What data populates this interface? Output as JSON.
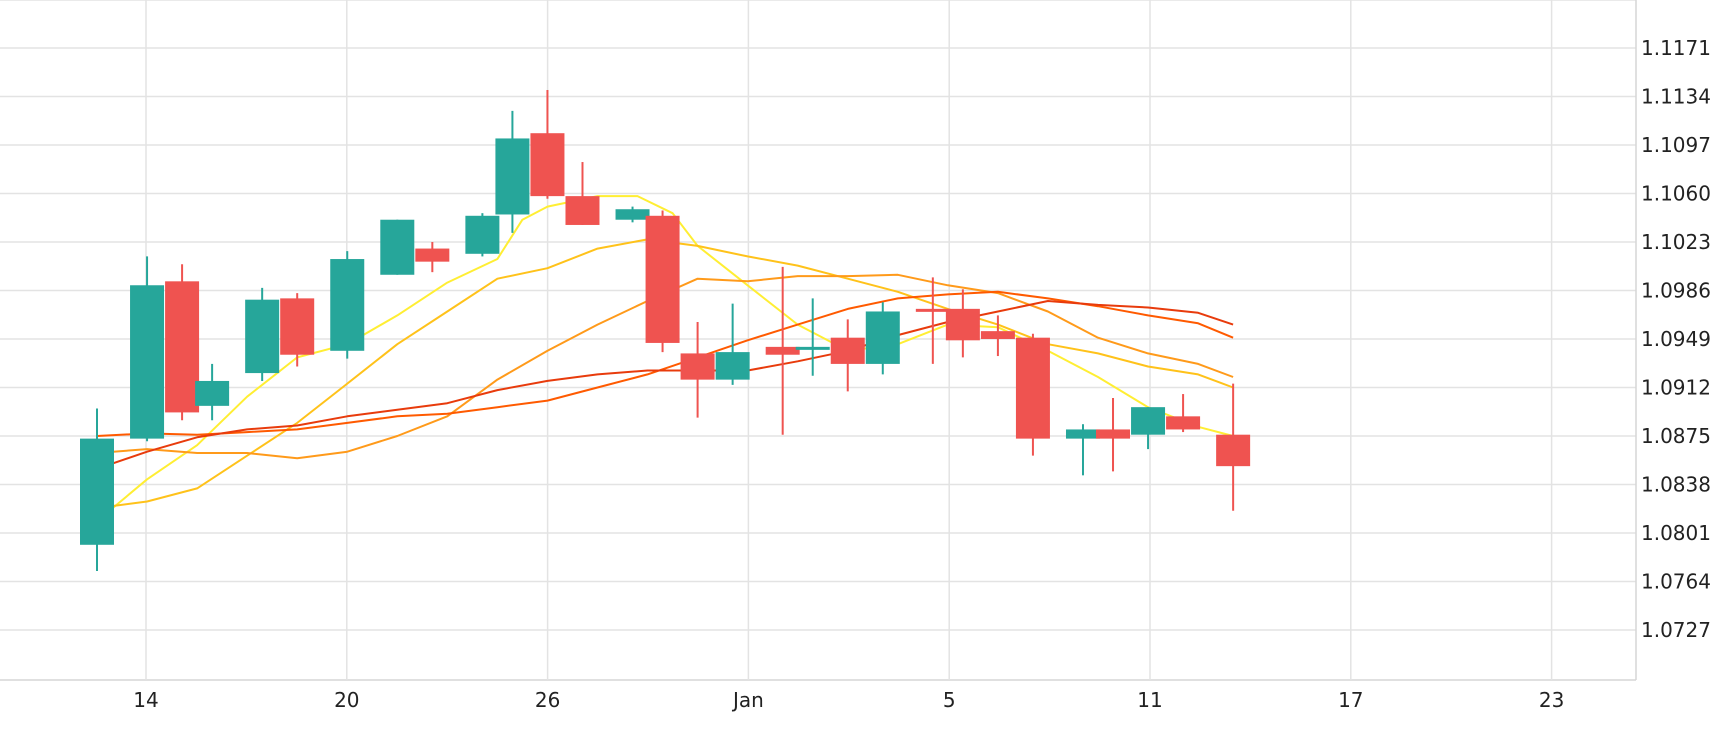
{
  "chart_data": {
    "type": "candlestick",
    "title": "",
    "xlabel": "",
    "ylabel": "",
    "ylim": [
      1.069,
      1.121
    ],
    "x_axis": {
      "labels": [
        "14",
        "20",
        "26",
        "Jan",
        "5",
        "11",
        "17",
        "23"
      ],
      "label_at_day_index": [
        1,
        5,
        9,
        13,
        17,
        21,
        25,
        29
      ]
    },
    "y_axis": {
      "ticks": [
        "1.1171",
        "1.1134",
        "1.1097",
        "1.1060",
        "1.1023",
        "1.0986",
        "1.0949",
        "1.0912",
        "1.0875",
        "1.0838",
        "1.0801",
        "1.0764",
        "1.0727"
      ],
      "side": "right"
    },
    "grid": true,
    "colors": {
      "up": "#26a69a",
      "down": "#ef5350"
    },
    "candles": [
      {
        "day": 0.0,
        "o": 1.0792,
        "h": 1.0896,
        "l": 1.0772,
        "c": 1.0873
      },
      {
        "day": 1.0,
        "o": 1.0873,
        "h": 1.1012,
        "l": 1.0871,
        "c": 1.099
      },
      {
        "day": 1.7,
        "o": 1.0993,
        "h": 1.1006,
        "l": 1.0887,
        "c": 1.0893
      },
      {
        "day": 2.3,
        "o": 1.0898,
        "h": 1.093,
        "l": 1.0887,
        "c": 1.0917
      },
      {
        "day": 3.3,
        "o": 1.0923,
        "h": 1.0988,
        "l": 1.0917,
        "c": 1.0979
      },
      {
        "day": 4.0,
        "o": 1.098,
        "h": 1.0984,
        "l": 1.0928,
        "c": 1.0937
      },
      {
        "day": 5.0,
        "o": 1.094,
        "h": 1.1016,
        "l": 1.0934,
        "c": 1.101
      },
      {
        "day": 6.0,
        "o": 1.0998,
        "h": 1.104,
        "l": 1.0998,
        "c": 1.104
      },
      {
        "day": 6.7,
        "o": 1.1018,
        "h": 1.1023,
        "l": 1.1,
        "c": 1.1008
      },
      {
        "day": 7.7,
        "o": 1.1014,
        "h": 1.1045,
        "l": 1.1012,
        "c": 1.1043
      },
      {
        "day": 8.3,
        "o": 1.1044,
        "h": 1.1123,
        "l": 1.103,
        "c": 1.1102
      },
      {
        "day": 9.0,
        "o": 1.1106,
        "h": 1.1139,
        "l": 1.1056,
        "c": 1.1058
      },
      {
        "day": 9.7,
        "o": 1.1058,
        "h": 1.1084,
        "l": 1.1036,
        "c": 1.1036
      },
      {
        "day": 10.7,
        "o": 1.104,
        "h": 1.105,
        "l": 1.1038,
        "c": 1.1048
      },
      {
        "day": 11.3,
        "o": 1.1043,
        "h": 1.1047,
        "l": 1.0939,
        "c": 1.0946
      },
      {
        "day": 12.0,
        "o": 1.0938,
        "h": 1.0962,
        "l": 1.0889,
        "c": 1.0918
      },
      {
        "day": 12.7,
        "o": 1.0918,
        "h": 1.0976,
        "l": 1.0914,
        "c": 1.0939
      },
      {
        "day": 13.7,
        "o": 1.0943,
        "h": 1.1004,
        "l": 1.0876,
        "c": 1.0937
      },
      {
        "day": 14.3,
        "o": 1.0941,
        "h": 1.098,
        "l": 1.0921,
        "c": 1.0943
      },
      {
        "day": 15.0,
        "o": 1.095,
        "h": 1.0964,
        "l": 1.0909,
        "c": 1.093
      },
      {
        "day": 15.7,
        "o": 1.093,
        "h": 1.0977,
        "l": 1.0922,
        "c": 1.097
      },
      {
        "day": 16.7,
        "o": 1.0972,
        "h": 1.0996,
        "l": 1.093,
        "c": 1.097
      },
      {
        "day": 17.3,
        "o": 1.0972,
        "h": 1.0987,
        "l": 1.0935,
        "c": 1.0948
      },
      {
        "day": 18.0,
        "o": 1.0955,
        "h": 1.0967,
        "l": 1.0936,
        "c": 1.0949
      },
      {
        "day": 18.7,
        "o": 1.095,
        "h": 1.0953,
        "l": 1.086,
        "c": 1.0873
      },
      {
        "day": 19.7,
        "o": 1.0873,
        "h": 1.0884,
        "l": 1.0845,
        "c": 1.088
      },
      {
        "day": 20.3,
        "o": 1.088,
        "h": 1.0904,
        "l": 1.0848,
        "c": 1.0873
      },
      {
        "day": 21.0,
        "o": 1.0876,
        "h": 1.0897,
        "l": 1.0865,
        "c": 1.0897
      },
      {
        "day": 21.7,
        "o": 1.089,
        "h": 1.0907,
        "l": 1.0878,
        "c": 1.088
      },
      {
        "day": 22.7,
        "o": 1.0876,
        "h": 1.0915,
        "l": 1.0818,
        "c": 1.0852
      }
    ],
    "series": [
      {
        "color": "#ffee33",
        "points": [
          [
            0.0,
            1.081
          ],
          [
            1.0,
            1.0842
          ],
          [
            2.0,
            1.0868
          ],
          [
            3.0,
            1.0905
          ],
          [
            4.0,
            1.0935
          ],
          [
            5.0,
            1.0945
          ],
          [
            6.0,
            1.0967
          ],
          [
            7.0,
            1.0992
          ],
          [
            8.0,
            1.101
          ],
          [
            8.5,
            1.104
          ],
          [
            9.0,
            1.105
          ],
          [
            10.0,
            1.1058
          ],
          [
            10.8,
            1.1058
          ],
          [
            11.5,
            1.1045
          ],
          [
            12.0,
            1.102
          ],
          [
            13.0,
            1.099
          ],
          [
            14.0,
            1.096
          ],
          [
            15.0,
            1.094
          ],
          [
            16.0,
            1.0945
          ],
          [
            17.0,
            1.096
          ],
          [
            18.0,
            1.0958
          ],
          [
            19.0,
            1.094
          ],
          [
            20.0,
            1.092
          ],
          [
            21.0,
            1.0897
          ],
          [
            22.0,
            1.0882
          ],
          [
            22.7,
            1.0875
          ]
        ]
      },
      {
        "color": "#ffc21a",
        "points": [
          [
            0.0,
            1.082
          ],
          [
            1.0,
            1.0825
          ],
          [
            2.0,
            1.0835
          ],
          [
            3.0,
            1.086
          ],
          [
            4.0,
            1.0885
          ],
          [
            5.0,
            1.0915
          ],
          [
            6.0,
            1.0945
          ],
          [
            7.0,
            1.097
          ],
          [
            8.0,
            1.0995
          ],
          [
            9.0,
            1.1003
          ],
          [
            10.0,
            1.1018
          ],
          [
            11.0,
            1.1025
          ],
          [
            12.0,
            1.102
          ],
          [
            13.0,
            1.1012
          ],
          [
            14.0,
            1.1005
          ],
          [
            15.0,
            1.0995
          ],
          [
            16.0,
            1.0985
          ],
          [
            17.0,
            1.0972
          ],
          [
            18.0,
            1.096
          ],
          [
            19.0,
            1.0945
          ],
          [
            20.0,
            1.0938
          ],
          [
            21.0,
            1.0928
          ],
          [
            22.0,
            1.0922
          ],
          [
            22.7,
            1.0912
          ]
        ]
      },
      {
        "color": "#ff9a1a",
        "points": [
          [
            0.0,
            1.0862
          ],
          [
            1.0,
            1.0865
          ],
          [
            2.0,
            1.0862
          ],
          [
            3.0,
            1.0862
          ],
          [
            4.0,
            1.0858
          ],
          [
            5.0,
            1.0863
          ],
          [
            6.0,
            1.0875
          ],
          [
            7.0,
            1.089
          ],
          [
            8.0,
            1.0918
          ],
          [
            9.0,
            1.094
          ],
          [
            10.0,
            1.096
          ],
          [
            11.0,
            1.0978
          ],
          [
            12.0,
            1.0995
          ],
          [
            13.0,
            1.0993
          ],
          [
            14.0,
            1.0997
          ],
          [
            15.0,
            1.0997
          ],
          [
            16.0,
            1.0998
          ],
          [
            17.0,
            1.099
          ],
          [
            18.0,
            1.0984
          ],
          [
            19.0,
            1.097
          ],
          [
            20.0,
            1.095
          ],
          [
            21.0,
            1.0938
          ],
          [
            22.0,
            1.093
          ],
          [
            22.7,
            1.092
          ]
        ]
      },
      {
        "color": "#ff5a00",
        "points": [
          [
            0.0,
            1.0875
          ],
          [
            1.0,
            1.0877
          ],
          [
            2.0,
            1.0876
          ],
          [
            3.0,
            1.0878
          ],
          [
            4.0,
            1.088
          ],
          [
            5.0,
            1.0885
          ],
          [
            6.0,
            1.089
          ],
          [
            7.0,
            1.0892
          ],
          [
            8.0,
            1.0897
          ],
          [
            9.0,
            1.0902
          ],
          [
            10.0,
            1.0912
          ],
          [
            11.0,
            1.0922
          ],
          [
            12.0,
            1.0935
          ],
          [
            13.0,
            1.0948
          ],
          [
            14.0,
            1.096
          ],
          [
            15.0,
            1.0972
          ],
          [
            16.0,
            1.098
          ],
          [
            17.0,
            1.0983
          ],
          [
            18.0,
            1.0985
          ],
          [
            19.0,
            1.098
          ],
          [
            20.0,
            1.0974
          ],
          [
            21.0,
            1.0967
          ],
          [
            22.0,
            1.0961
          ],
          [
            22.7,
            1.095
          ]
        ]
      },
      {
        "color": "#e83b0c",
        "points": [
          [
            0.0,
            1.085
          ],
          [
            1.0,
            1.0863
          ],
          [
            2.0,
            1.0874
          ],
          [
            3.0,
            1.088
          ],
          [
            4.0,
            1.0883
          ],
          [
            5.0,
            1.089
          ],
          [
            6.0,
            1.0895
          ],
          [
            7.0,
            1.09
          ],
          [
            8.0,
            1.091
          ],
          [
            9.0,
            1.0917
          ],
          [
            10.0,
            1.0922
          ],
          [
            11.0,
            1.0925
          ],
          [
            12.0,
            1.0925
          ],
          [
            13.0,
            1.0925
          ],
          [
            14.0,
            1.0932
          ],
          [
            15.0,
            1.094
          ],
          [
            16.0,
            1.0952
          ],
          [
            17.0,
            1.0962
          ],
          [
            18.0,
            1.097
          ],
          [
            19.0,
            1.0978
          ],
          [
            20.0,
            1.0975
          ],
          [
            21.0,
            1.0973
          ],
          [
            22.0,
            1.0969
          ],
          [
            22.7,
            1.096
          ]
        ]
      }
    ]
  }
}
